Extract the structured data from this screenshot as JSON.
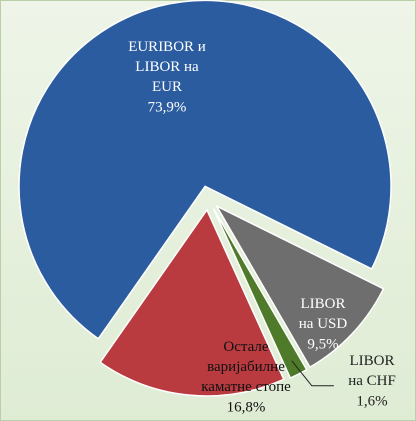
{
  "chart_data": {
    "type": "pie",
    "categories": [
      "EURIBOR и\nLIBOR на\nEUR",
      "LIBOR\nна USD",
      "LIBOR\nна CHF",
      "Остале\nваријабилне\nкаматне стопе"
    ],
    "values": [
      73.9,
      9.5,
      1.6,
      16.8
    ],
    "value_labels": [
      "73,9%",
      "9,5%",
      "1,6%",
      "16,8%"
    ],
    "colors": [
      "#2b5c9f",
      "#6e6e6e",
      "#4e7a2a",
      "#b93b40"
    ]
  }
}
